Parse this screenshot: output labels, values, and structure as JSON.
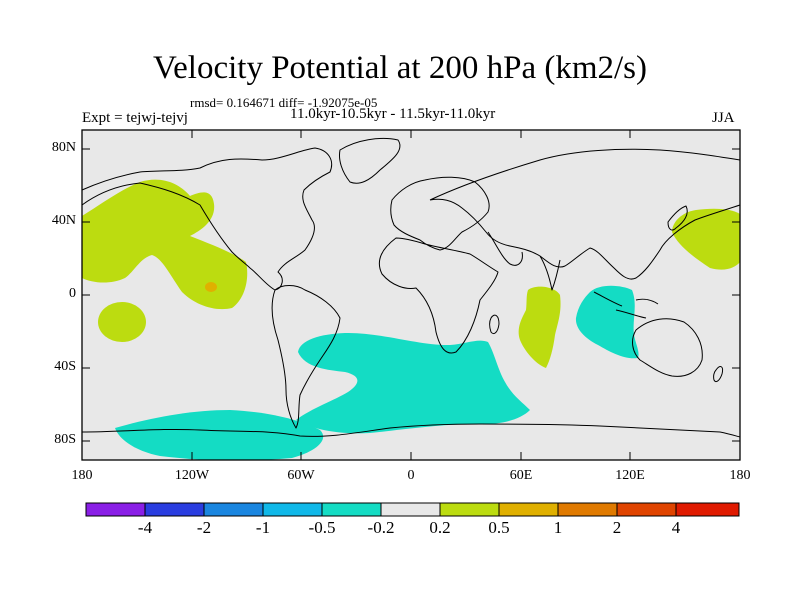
{
  "title": "Velocity Potential at 200 hPa (km2/s)",
  "stats": "rmsd= 0.164671 diff= -1.92075e-05",
  "experiment": "Expt = tejwj-tejvj",
  "period": "11.0kyr-10.5kyr - 11.5kyr-11.0kyr",
  "season": "JJA",
  "y_axis_labels": [
    "80N",
    "40N",
    "0",
    "40S",
    "80S"
  ],
  "x_axis_labels": [
    "180",
    "120W",
    "60W",
    "0",
    "60E",
    "120E",
    "180"
  ],
  "colorbar": {
    "labels": [
      "-4",
      "-2",
      "-1",
      "-0.5",
      "-0.2",
      "0.2",
      "0.5",
      "1",
      "2",
      "4"
    ],
    "colors": [
      "#8a1fe6",
      "#2a3de0",
      "#1a86e0",
      "#10b8e8",
      "#14dcc4",
      "#e8e8e8",
      "#bcdc10",
      "#e0b000",
      "#e07a00",
      "#e04400",
      "#e01a00"
    ]
  },
  "colors": {
    "land_ocean_background": "#e8e8e8",
    "positive_02_05": "#bcdc10",
    "negative_02_05": "#14dcc4",
    "positive_05_1": "#e0b000"
  }
}
